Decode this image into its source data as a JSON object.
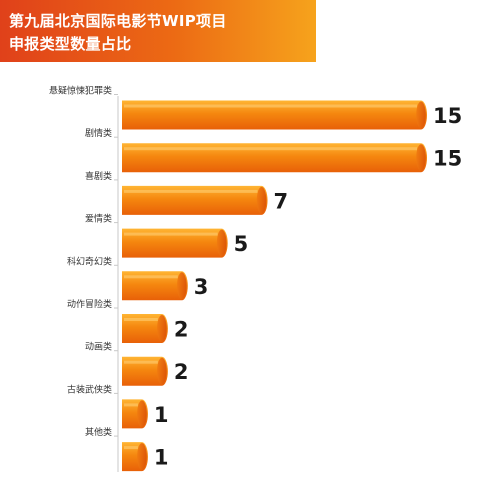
{
  "header": {
    "title_line1": "第九届北京国际电影节WIP项目",
    "title_line2": "申报类型数量占比"
  },
  "colors": {
    "banner_left": "#e0411a",
    "banner_right": "#f6a31c",
    "bar_light": "#ffb533",
    "bar_mid": "#f5870f",
    "bar_dark": "#e86008",
    "bar_end": "#d94f06"
  },
  "chart_data": {
    "type": "bar",
    "orientation": "horizontal",
    "title": "第九届北京国际电影节WIP项目 申报类型数量占比",
    "categories": [
      "悬疑惊悚犯罪类",
      "剧情类",
      "喜剧类",
      "爱情类",
      "科幻奇幻类",
      "动作冒险类",
      "动画类",
      "古装武侠类",
      "其他类"
    ],
    "values": [
      15,
      15,
      7,
      5,
      3,
      2,
      2,
      1,
      1
    ],
    "xlim": [
      0,
      15
    ],
    "grid": false,
    "legend": "none"
  }
}
